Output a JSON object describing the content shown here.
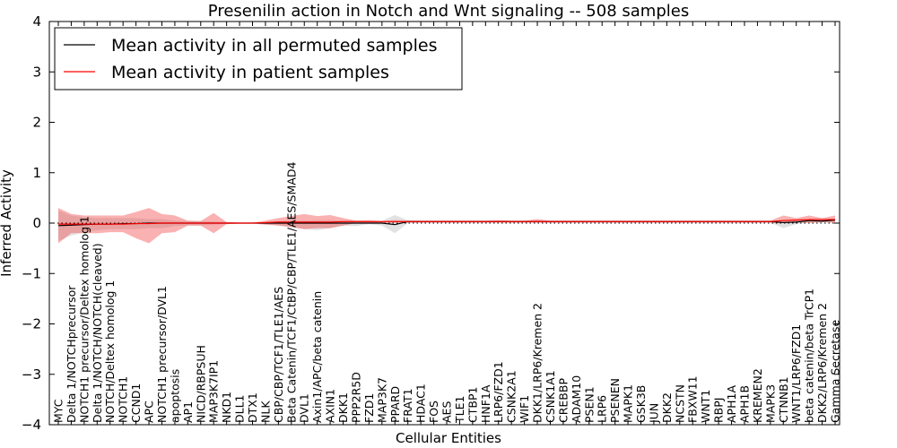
{
  "chart_data": {
    "type": "line",
    "title": "Presenilin action in Notch and Wnt signaling -- 508 samples",
    "xlabel": "Cellular Entities",
    "ylabel": "Inferred Activity",
    "ylim": [
      -4,
      4
    ],
    "yticks": [
      -4,
      -3,
      -2,
      -1,
      0,
      1,
      2,
      3,
      4
    ],
    "ytick_labels": [
      "−4",
      "−3",
      "−2",
      "−1",
      "0",
      "1",
      "2",
      "3",
      "4"
    ],
    "grid": false,
    "legend_position": "top-left",
    "categories": [
      "MYC",
      "Delta 1/NOTCHprecursor",
      "NOTCH1 precursor/Deltex homolog 1",
      "Delta 1/NOTCH/NOTCH(cleaved)",
      "NOTCH/Deltex homolog 1",
      "NOTCH1",
      "CCND1",
      "APC",
      "NOTCH1 precursor/DVL1",
      "apoptosis",
      "AP1",
      "NICD/RBPSUH",
      "MAP3K7IP1",
      "NKD1",
      "DLL1",
      "DTX1",
      "NLK",
      "CBP/CBP/TCF1/TLE1/AES",
      "Beta Catenin/TCF1/CtBP/CBP/TLE1/AES/SMAD4",
      "DVL1",
      "Axin1/APC/beta catenin",
      "AXIN1",
      "DKK1",
      "PPP2R5D",
      "FZD1",
      "MAP3K7",
      "PPARD",
      "FRAT1",
      "HDAC1",
      "FOS",
      "AES",
      "TLE1",
      "CTBP1",
      "HNF1A",
      "LRP6/FZD1",
      "CSNK2A1",
      "WIF1",
      "DKK1/LRP6/Kremen 2",
      "CSNK1A1",
      "CREBBP",
      "ADAM10",
      "PSEN1",
      "LRP6",
      "PSENEN",
      "MAPK1",
      "GSK3B",
      "JUN",
      "DKK2",
      "NCSTN",
      "FBXW11",
      "WNT1",
      "RBPJ",
      "APH1A",
      "APH1B",
      "KREMEN2",
      "MAPK3",
      "CTNNB1",
      "WNT1/LRP6/FZD1",
      "beta catenin/beta TrCP1",
      "DKK2/LRP6/Kremen 2",
      "Gamma Secretase"
    ],
    "series": [
      {
        "name": "Mean activity in all permuted samples",
        "color": "#000000",
        "values": [
          -0.05,
          -0.04,
          -0.03,
          -0.02,
          -0.02,
          -0.01,
          -0.01,
          0.0,
          0.0,
          0.0,
          0.0,
          0.0,
          0.0,
          0.0,
          0.0,
          0.0,
          0.0,
          0.0,
          0.0,
          0.0,
          0.0,
          0.0,
          0.0,
          0.0,
          0.0,
          0.0,
          -0.03,
          0.03,
          0.03,
          0.03,
          0.03,
          0.03,
          0.03,
          0.03,
          0.03,
          0.03,
          0.03,
          0.03,
          0.03,
          0.03,
          0.03,
          0.03,
          0.03,
          0.03,
          0.03,
          0.03,
          0.03,
          0.03,
          0.03,
          0.03,
          0.03,
          0.03,
          0.03,
          0.03,
          0.03,
          0.03,
          0.01,
          0.02,
          0.05,
          0.04,
          0.06
        ],
        "band_upper": [
          0.25,
          0.15,
          0.12,
          0.1,
          0.1,
          0.1,
          0.1,
          0.08,
          0.08,
          0.05,
          0.04,
          0.04,
          0.03,
          0.02,
          0.01,
          0.01,
          0.02,
          0.04,
          0.05,
          0.05,
          0.06,
          0.06,
          0.04,
          0.06,
          0.04,
          0.05,
          0.16,
          0.06,
          0.05,
          0.05,
          0.05,
          0.05,
          0.05,
          0.05,
          0.05,
          0.05,
          0.05,
          0.05,
          0.05,
          0.05,
          0.05,
          0.05,
          0.05,
          0.05,
          0.05,
          0.05,
          0.05,
          0.05,
          0.05,
          0.05,
          0.05,
          0.05,
          0.05,
          0.05,
          0.05,
          0.05,
          0.05,
          0.06,
          0.08,
          0.07,
          0.09
        ],
        "band_lower": [
          -0.35,
          -0.25,
          -0.18,
          -0.14,
          -0.12,
          -0.12,
          -0.12,
          -0.1,
          -0.1,
          -0.06,
          -0.05,
          -0.05,
          -0.03,
          -0.02,
          -0.01,
          -0.01,
          -0.02,
          -0.05,
          -0.08,
          -0.12,
          -0.14,
          -0.1,
          -0.05,
          -0.06,
          -0.02,
          -0.05,
          -0.2,
          0.0,
          0.01,
          0.01,
          0.01,
          0.01,
          0.01,
          0.01,
          0.01,
          0.01,
          0.01,
          0.01,
          0.01,
          0.01,
          0.01,
          0.01,
          0.01,
          0.01,
          0.01,
          0.01,
          0.01,
          0.01,
          0.01,
          0.01,
          0.01,
          0.01,
          0.01,
          0.01,
          0.01,
          0.01,
          -0.1,
          -0.02,
          0.02,
          0.01,
          0.03
        ]
      },
      {
        "name": "Mean activity in patient samples",
        "color": "#ff0000",
        "values": [
          -0.02,
          -0.02,
          -0.02,
          -0.02,
          -0.02,
          -0.02,
          -0.01,
          -0.01,
          0.0,
          0.0,
          0.0,
          0.0,
          0.0,
          0.0,
          0.0,
          0.0,
          0.01,
          0.02,
          0.02,
          0.02,
          0.02,
          0.02,
          0.03,
          0.03,
          0.03,
          0.03,
          0.03,
          0.03,
          0.03,
          0.03,
          0.03,
          0.03,
          0.03,
          0.03,
          0.03,
          0.03,
          0.03,
          0.03,
          0.03,
          0.03,
          0.03,
          0.03,
          0.03,
          0.03,
          0.03,
          0.03,
          0.03,
          0.03,
          0.03,
          0.03,
          0.03,
          0.03,
          0.03,
          0.03,
          0.03,
          0.03,
          0.05,
          0.06,
          0.07,
          0.07,
          0.07
        ],
        "band_upper": [
          0.3,
          0.18,
          0.15,
          0.15,
          0.15,
          0.15,
          0.22,
          0.3,
          0.18,
          0.15,
          0.05,
          0.04,
          0.2,
          0.02,
          0.01,
          0.01,
          0.05,
          0.1,
          0.14,
          0.18,
          0.14,
          0.16,
          0.1,
          0.05,
          0.06,
          0.04,
          0.06,
          0.05,
          0.05,
          0.05,
          0.05,
          0.05,
          0.05,
          0.05,
          0.06,
          0.05,
          0.05,
          0.08,
          0.05,
          0.05,
          0.05,
          0.05,
          0.05,
          0.05,
          0.05,
          0.05,
          0.05,
          0.05,
          0.05,
          0.05,
          0.05,
          0.05,
          0.05,
          0.05,
          0.05,
          0.05,
          0.15,
          0.1,
          0.15,
          0.1,
          0.15
        ],
        "band_lower": [
          -0.4,
          -0.2,
          -0.2,
          -0.2,
          -0.18,
          -0.18,
          -0.3,
          -0.4,
          -0.2,
          -0.18,
          -0.05,
          -0.05,
          -0.2,
          -0.02,
          -0.01,
          -0.01,
          -0.03,
          -0.05,
          -0.08,
          -0.12,
          -0.1,
          -0.1,
          -0.05,
          0.0,
          0.0,
          0.01,
          0.01,
          0.01,
          0.01,
          0.01,
          0.01,
          0.01,
          0.01,
          0.01,
          0.01,
          0.01,
          0.01,
          0.01,
          0.01,
          0.01,
          0.01,
          0.01,
          0.01,
          0.01,
          0.01,
          0.01,
          0.01,
          0.01,
          0.01,
          0.01,
          0.01,
          0.01,
          0.01,
          0.01,
          0.01,
          0.01,
          0.0,
          0.02,
          0.0,
          0.02,
          0.0
        ]
      }
    ],
    "reference_line": {
      "y": 0,
      "style": "dotted",
      "color": "#000000"
    }
  }
}
